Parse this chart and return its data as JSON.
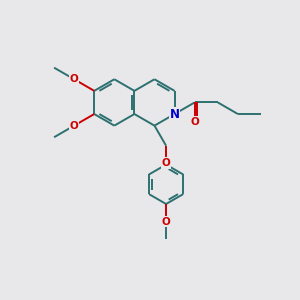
{
  "bg_color": "#e8e8eb",
  "bond_color": "#2d7070",
  "N_color": "#0000cc",
  "O_color": "#cc0000",
  "line_width": 1.4,
  "font_size": 7.5,
  "figsize": [
    3.0,
    3.0
  ],
  "dpi": 100,
  "xlim": [
    0,
    10
  ],
  "ylim": [
    0,
    10
  ]
}
